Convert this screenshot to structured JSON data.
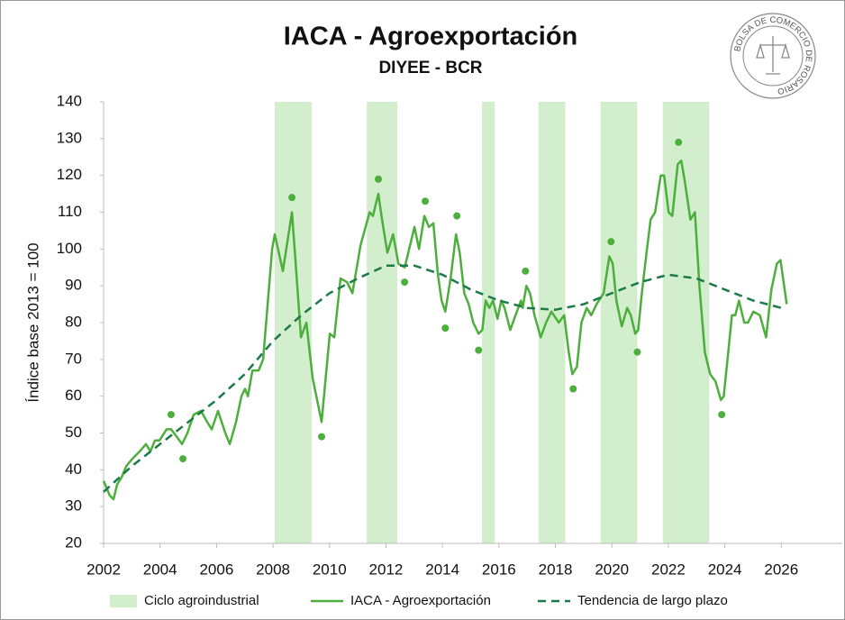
{
  "chart_data": {
    "type": "line",
    "title": "IACA - Agroexportación",
    "subtitle": "DIYEE - BCR",
    "logo_text": "BOLSA DE COMERCIO DE ROSARIO",
    "y_label": "Índice base 2013 = 100",
    "xlim": [
      2002,
      2028
    ],
    "xticks": [
      2002,
      2004,
      2006,
      2008,
      2010,
      2012,
      2014,
      2016,
      2018,
      2020,
      2022,
      2024,
      2026
    ],
    "ylim": [
      20,
      140
    ],
    "yticks": [
      20,
      30,
      40,
      50,
      60,
      70,
      80,
      90,
      100,
      110,
      120,
      130,
      140
    ],
    "grid": false,
    "legend": "bottom",
    "series": [
      {
        "name": "Ciclo agroindustrial",
        "type": "band",
        "color": "#d3eecd",
        "ranges": [
          [
            2008.06,
            2009.37
          ],
          [
            2011.32,
            2012.4
          ],
          [
            2015.4,
            2015.85
          ],
          [
            2017.4,
            2018.35
          ],
          [
            2019.6,
            2020.9
          ],
          [
            2021.8,
            2023.45
          ]
        ]
      },
      {
        "name": "IACA - Agroexportación",
        "type": "line",
        "color": "#4caf3c",
        "x": [
          2002.0,
          2002.22,
          2002.35,
          2002.48,
          2002.64,
          2002.8,
          2003.02,
          2003.28,
          2003.5,
          2003.66,
          2003.82,
          2003.98,
          2004.23,
          2004.39,
          2004.59,
          2004.78,
          2004.97,
          2005.19,
          2005.45,
          2005.67,
          2005.83,
          2006.05,
          2006.31,
          2006.47,
          2006.69,
          2006.88,
          2007.01,
          2007.11,
          2007.27,
          2007.49,
          2007.65,
          2007.84,
          2007.97,
          2008.06,
          2008.35,
          2008.67,
          2008.99,
          2009.18,
          2009.4,
          2009.72,
          2010.01,
          2010.17,
          2010.39,
          2010.62,
          2010.81,
          2011.1,
          2011.42,
          2011.54,
          2011.73,
          2011.86,
          2012.05,
          2012.25,
          2012.44,
          2012.66,
          2012.82,
          2013.01,
          2013.17,
          2013.36,
          2013.52,
          2013.68,
          2013.84,
          2013.97,
          2014.1,
          2014.29,
          2014.48,
          2014.61,
          2014.77,
          2014.93,
          2015.09,
          2015.28,
          2015.41,
          2015.53,
          2015.66,
          2015.79,
          2015.95,
          2016.08,
          2016.2,
          2016.4,
          2016.59,
          2016.78,
          2016.84,
          2016.97,
          2017.1,
          2017.26,
          2017.48,
          2017.67,
          2017.86,
          2018.12,
          2018.31,
          2018.47,
          2018.6,
          2018.76,
          2018.92,
          2019.11,
          2019.27,
          2019.46,
          2019.71,
          2019.91,
          2020.03,
          2020.16,
          2020.35,
          2020.54,
          2020.67,
          2020.83,
          2020.93,
          2021.06,
          2021.21,
          2021.37,
          2021.53,
          2021.73,
          2021.85,
          2022.01,
          2022.14,
          2022.33,
          2022.46,
          2022.59,
          2022.78,
          2022.94,
          2023.1,
          2023.29,
          2023.48,
          2023.67,
          2023.86,
          2023.96,
          2024.12,
          2024.25,
          2024.37,
          2024.5,
          2024.69,
          2024.82,
          2025.01,
          2025.24,
          2025.46,
          2025.65,
          2025.84,
          2025.97,
          2026.19
        ],
        "values": [
          37,
          33,
          32,
          36,
          38,
          41,
          43,
          45,
          47,
          45,
          48,
          48,
          51,
          51,
          49,
          47,
          50,
          55,
          56,
          53,
          51,
          56,
          50,
          47,
          53,
          60,
          62,
          60,
          67,
          67,
          70,
          88,
          100,
          104,
          94,
          110,
          76,
          80,
          65,
          53,
          77,
          76,
          92,
          91,
          88,
          101,
          110,
          109,
          115,
          108,
          99,
          104,
          96,
          95,
          100,
          106,
          100,
          109,
          106,
          107,
          93,
          86,
          83,
          92,
          104,
          99,
          88,
          85,
          80,
          77,
          78,
          86,
          84,
          86,
          81,
          86,
          84,
          78,
          82,
          86,
          84,
          90,
          88,
          82,
          76,
          80,
          83,
          80,
          82,
          72,
          66,
          68,
          80,
          84,
          82,
          85,
          88,
          98,
          96,
          86,
          79,
          84,
          82,
          77,
          78,
          88,
          98,
          108,
          110,
          120,
          120,
          110,
          109,
          123,
          124,
          118,
          108,
          110,
          90,
          72,
          66,
          64,
          59,
          60,
          72,
          82,
          82,
          86,
          80,
          80,
          83,
          82,
          76,
          89,
          96,
          97,
          85
        ]
      },
      {
        "name": "Tendencia de largo plazo",
        "type": "dashed",
        "color": "#1b7a48",
        "x": [
          2002,
          2003,
          2004,
          2005,
          2006,
          2007,
          2008,
          2009,
          2010,
          2011,
          2012,
          2013,
          2014,
          2015,
          2016,
          2017,
          2018,
          2019,
          2020,
          2021,
          2022,
          2023,
          2024,
          2025,
          2026
        ],
        "values": [
          34,
          41,
          47,
          53,
          59,
          66,
          75,
          82,
          88,
          92,
          95.5,
          95.5,
          93,
          89,
          86,
          84,
          83.5,
          85,
          88,
          91,
          93,
          92,
          89,
          86,
          84
        ]
      },
      {
        "type": "scatter",
        "color": "#4caf3c",
        "x": [
          2004.39,
          2004.81,
          2008.67,
          2009.72,
          2011.73,
          2012.66,
          2013.39,
          2014.1,
          2014.51,
          2015.28,
          2016.94,
          2018.63,
          2019.97,
          2020.9,
          2022.36,
          2023.89
        ],
        "values": [
          55,
          43,
          114,
          49,
          119,
          91,
          113,
          78.5,
          109,
          72.5,
          94,
          62,
          102,
          72,
          129,
          55
        ]
      }
    ]
  }
}
